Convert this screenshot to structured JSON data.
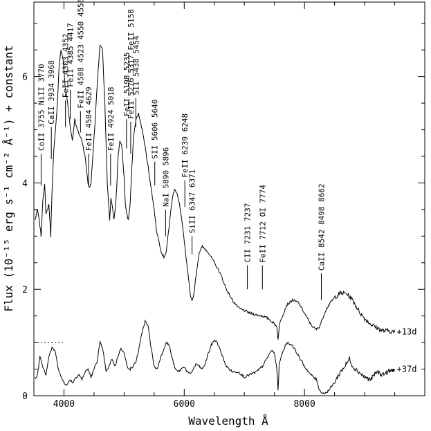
{
  "chart_data": {
    "type": "line",
    "title": "",
    "xlabel": "Wavelength Å",
    "ylabel": "Flux (10⁻¹⁵ erg s⁻¹ cm⁻² Å⁻¹) + constant",
    "xlim": [
      3500,
      10000
    ],
    "ylim": [
      0,
      7.4
    ],
    "x_ticks": [
      {
        "value": 4000,
        "label": "4000"
      },
      {
        "value": 6000,
        "label": "6000"
      },
      {
        "value": 8000,
        "label": "8000"
      }
    ],
    "y_ticks": [
      {
        "value": 0,
        "label": "0"
      },
      {
        "value": 2,
        "label": "2"
      },
      {
        "value": 4,
        "label": "4"
      },
      {
        "value": 6,
        "label": "6"
      }
    ],
    "grid": false,
    "offset_marker": {
      "y": 1.0,
      "x_from": 3500,
      "x_to": 4000,
      "style": "dotted"
    },
    "series": [
      {
        "name": "+13d",
        "x": [
          3520,
          3560,
          3600,
          3620,
          3650,
          3680,
          3700,
          3750,
          3780,
          3800,
          3830,
          3860,
          3890,
          3920,
          3950,
          3990,
          4020,
          4050,
          4080,
          4110,
          4140,
          4180,
          4220,
          4260,
          4300,
          4350,
          4400,
          4420,
          4450,
          4480,
          4520,
          4560,
          4600,
          4640,
          4680,
          4720,
          4760,
          4780,
          4800,
          4830,
          4860,
          4880,
          4900,
          4930,
          4960,
          5000,
          5020,
          5050,
          5070,
          5100,
          5130,
          5160,
          5200,
          5240,
          5280,
          5320,
          5360,
          5400,
          5450,
          5500,
          5540,
          5580,
          5620,
          5660,
          5700,
          5720,
          5760,
          5800,
          5840,
          5880,
          5920,
          5960,
          6000,
          6040,
          6070,
          6100,
          6130,
          6160,
          6200,
          6250,
          6300,
          6400,
          6500,
          6600,
          6700,
          6800,
          6900,
          7000,
          7100,
          7200,
          7300,
          7400,
          7500,
          7540,
          7560,
          7580,
          7600,
          7700,
          7800,
          7900,
          8000,
          8100,
          8150,
          8200,
          8250,
          8300,
          8350,
          8400,
          8500,
          8600,
          8700,
          8800,
          8900,
          9000,
          9100,
          9200,
          9300,
          9400,
          9500
        ],
        "values": [
          3.3,
          3.5,
          3.2,
          3.0,
          3.7,
          4.0,
          3.4,
          3.6,
          3.0,
          3.8,
          4.6,
          5.0,
          5.5,
          6.2,
          6.5,
          6.3,
          5.8,
          5.6,
          5.3,
          5.0,
          4.8,
          5.2,
          5.0,
          4.9,
          4.8,
          4.5,
          4.0,
          3.9,
          4.0,
          4.5,
          5.2,
          6.0,
          6.6,
          6.5,
          5.5,
          4.0,
          3.3,
          3.7,
          3.6,
          3.3,
          3.6,
          4.0,
          4.5,
          4.8,
          4.7,
          4.1,
          3.6,
          3.4,
          3.3,
          3.6,
          4.3,
          4.9,
          5.2,
          5.3,
          5.1,
          4.9,
          4.6,
          4.3,
          3.9,
          3.5,
          3.1,
          2.9,
          2.7,
          2.6,
          2.7,
          2.9,
          3.3,
          3.7,
          3.9,
          3.8,
          3.6,
          3.3,
          2.9,
          2.5,
          2.2,
          1.9,
          1.8,
          1.9,
          2.3,
          2.7,
          2.8,
          2.7,
          2.5,
          2.3,
          2.0,
          1.8,
          1.65,
          1.6,
          1.55,
          1.52,
          1.5,
          1.45,
          1.35,
          1.3,
          1.05,
          1.3,
          1.4,
          1.7,
          1.8,
          1.75,
          1.55,
          1.35,
          1.28,
          1.25,
          1.3,
          1.45,
          1.6,
          1.7,
          1.85,
          1.93,
          1.92,
          1.8,
          1.6,
          1.45,
          1.35,
          1.28,
          1.22,
          1.22,
          1.2
        ]
      },
      {
        "name": "+37d",
        "x": [
          3520,
          3560,
          3600,
          3650,
          3700,
          3750,
          3800,
          3850,
          3900,
          3950,
          4000,
          4050,
          4100,
          4150,
          4200,
          4250,
          4300,
          4350,
          4400,
          4450,
          4500,
          4550,
          4600,
          4650,
          4700,
          4750,
          4800,
          4850,
          4900,
          4950,
          5000,
          5050,
          5100,
          5150,
          5200,
          5250,
          5300,
          5350,
          5400,
          5450,
          5500,
          5550,
          5600,
          5650,
          5700,
          5750,
          5800,
          5850,
          5900,
          5950,
          6000,
          6050,
          6100,
          6150,
          6200,
          6250,
          6300,
          6350,
          6400,
          6450,
          6500,
          6550,
          6600,
          6650,
          6700,
          6800,
          6900,
          7000,
          7100,
          7200,
          7300,
          7400,
          7450,
          7500,
          7540,
          7560,
          7580,
          7600,
          7700,
          7800,
          7900,
          8000,
          8100,
          8200,
          8250,
          8300,
          8350,
          8400,
          8500,
          8600,
          8700,
          8750,
          8800,
          8900,
          9000,
          9100,
          9200,
          9300,
          9400,
          9500
        ],
        "values": [
          0.3,
          0.4,
          0.75,
          0.55,
          0.4,
          0.75,
          0.9,
          0.85,
          0.55,
          0.35,
          0.25,
          0.2,
          0.3,
          0.25,
          0.35,
          0.4,
          0.3,
          0.45,
          0.5,
          0.35,
          0.5,
          0.65,
          1.0,
          0.85,
          0.45,
          0.55,
          0.7,
          0.55,
          0.75,
          0.9,
          0.8,
          0.55,
          0.5,
          0.55,
          0.65,
          0.9,
          1.2,
          1.4,
          1.3,
          0.9,
          0.55,
          0.5,
          0.7,
          0.85,
          1.0,
          0.95,
          0.7,
          0.5,
          0.45,
          0.5,
          0.55,
          0.45,
          0.4,
          0.5,
          0.6,
          0.55,
          0.5,
          0.6,
          0.8,
          0.95,
          1.05,
          1.0,
          0.85,
          0.7,
          0.55,
          0.45,
          0.45,
          0.35,
          0.4,
          0.45,
          0.55,
          0.75,
          0.85,
          0.8,
          0.5,
          0.1,
          0.6,
          0.7,
          1.0,
          0.95,
          0.75,
          0.55,
          0.4,
          0.3,
          0.1,
          0.05,
          0.05,
          0.1,
          0.25,
          0.45,
          0.6,
          0.7,
          0.55,
          0.45,
          0.35,
          0.3,
          0.45,
          0.4,
          0.45,
          0.5
        ]
      }
    ],
    "line_ids": [
      {
        "label": "CoII 3755 NiII 3770",
        "x": 3620,
        "y_bottom": 3.95,
        "y_top": 4.55
      },
      {
        "label": "CaII 3934 3968",
        "x": 3790,
        "y_bottom": 4.45,
        "y_top": 5.05
      },
      {
        "label": "FeII 4303 4352",
        "x": 4025,
        "y_bottom": 5.05,
        "y_top": 5.55
      },
      {
        "label": "FeII 4385 4417",
        "x": 4105,
        "y_bottom": 5.2,
        "y_top": 5.75
      },
      {
        "label": "FeII 4508 4523 4550 4556",
        "x": 4275,
        "y_bottom": 4.95,
        "y_top": 5.35
      },
      {
        "label": "FeII 4584 4629",
        "x": 4410,
        "y_bottom": 3.95,
        "y_top": 4.55
      },
      {
        "label": "FeII 4924 5018",
        "x": 4775,
        "y_bottom": 3.95,
        "y_top": 4.55
      },
      {
        "label": "FeII 5198 5235",
        "x": 5040,
        "y_bottom": 4.65,
        "y_top": 5.2
      },
      {
        "label": "FeII 5276 5317 FeII 5158",
        "x": 5110,
        "y_bottom": 4.55,
        "y_top": 5.15
      },
      {
        "label": "SII 5438 5454",
        "x": 5195,
        "y_bottom": 5.05,
        "y_top": 5.6
      },
      {
        "label": "SII 5606 5640",
        "x": 5510,
        "y_bottom": 3.95,
        "y_top": 4.4
      },
      {
        "label": "NaI 5890 5896",
        "x": 5690,
        "y_bottom": 3.0,
        "y_top": 3.5
      },
      {
        "label": "FeII 6239 6248",
        "x": 6010,
        "y_bottom": 3.55,
        "y_top": 4.05
      },
      {
        "label": "SiII 6347 6371",
        "x": 6130,
        "y_bottom": 2.65,
        "y_top": 3.0
      },
      {
        "label": "CII 7231 7237",
        "x": 7050,
        "y_bottom": 2.0,
        "y_top": 2.45
      },
      {
        "label": "FeII 7712 OI 7774",
        "x": 7300,
        "y_bottom": 2.0,
        "y_top": 2.45
      },
      {
        "label": "CaII 8542 8498 8662",
        "x": 8280,
        "y_bottom": 1.8,
        "y_top": 2.3
      }
    ]
  }
}
